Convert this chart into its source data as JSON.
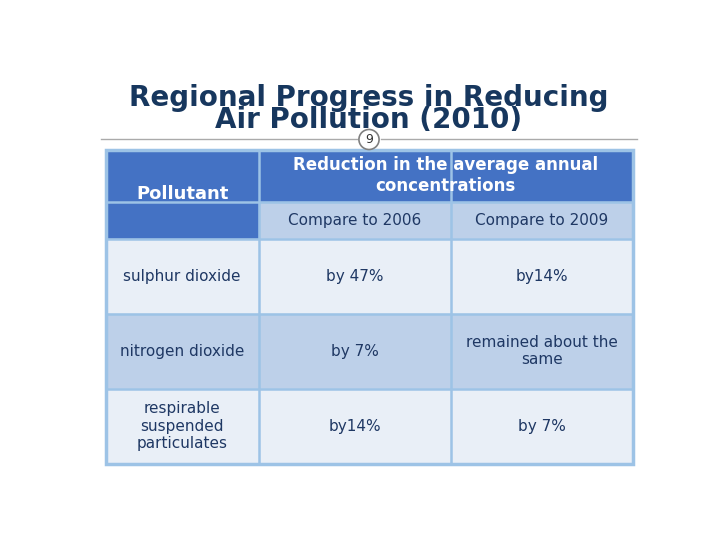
{
  "title_line1": "Regional Progress in Reducing",
  "title_line2": "Air Pollution (2010)",
  "slide_number": "9",
  "header_col1": "Pollutant",
  "header_col2": "Reduction in the average annual\nconcentrations",
  "subheader_col2": "Compare to 2006",
  "subheader_col3": "Compare to 2009",
  "rows": [
    [
      "sulphur dioxide",
      "by 47%",
      "by14%"
    ],
    [
      "nitrogen dioxide",
      "by 7%",
      "remained about the\nsame"
    ],
    [
      "respirable\nsuspended\nparticulates",
      "by14%",
      "by 7%"
    ]
  ],
  "header_bg": "#4472C4",
  "header_text_color": "#FFFFFF",
  "subheader_bg": "#BDD0E9",
  "row_bg_odd": "#E9EFF7",
  "row_bg_even": "#BDD0E9",
  "row_col0_odd": "#E9EFF7",
  "row_col0_even": "#BDD0E9",
  "table_outer_bg": "#9DC3E6",
  "title_color": "#17375E",
  "body_text_color": "#1F3864",
  "page_bg": "#FFFFFF",
  "divider_color": "#4472C4",
  "circle_bg": "#FFFFFF",
  "circle_border": "#808080"
}
